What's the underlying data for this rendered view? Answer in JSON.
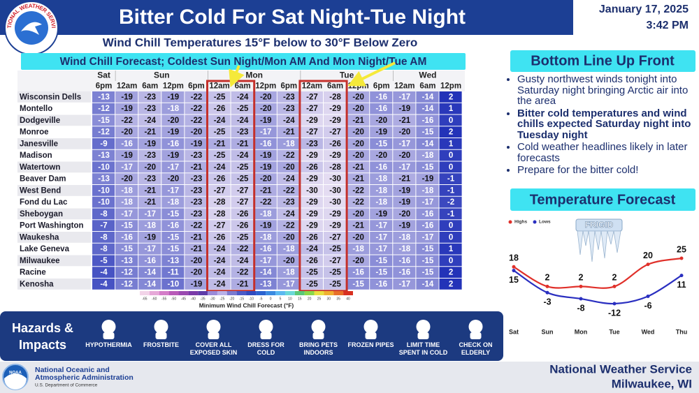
{
  "header": {
    "logo_text": "NATIONAL WEATHER SERVICE",
    "title": "Bitter Cold For Sat Night-Tue Night",
    "date": "January 17, 2025",
    "time": "3:42 PM",
    "subtitle": "Wind Chill Temperatures 15°F below to 30°F Below Zero"
  },
  "table": {
    "banner": "Wind Chill Forecast; Coldest Sun Night/Mon AM And Mon Night/Tue AM",
    "days": [
      {
        "name": "Sat",
        "times": [
          "6pm"
        ]
      },
      {
        "name": "Sun",
        "times": [
          "12am",
          "6am",
          "12pm",
          "6pm"
        ]
      },
      {
        "name": "Mon",
        "times": [
          "12am",
          "6am",
          "12pm",
          "6pm"
        ]
      },
      {
        "name": "Tue",
        "times": [
          "12am",
          "6am",
          "12pm",
          "6pm"
        ]
      },
      {
        "name": "Wed",
        "times": [
          "12am",
          "6am",
          "12pm"
        ]
      }
    ],
    "rows": [
      {
        "name": "Wisconsin Dells",
        "values": [
          -13,
          -19,
          -23,
          -19,
          -22,
          -25,
          -24,
          -20,
          -23,
          -27,
          -28,
          -20,
          -16,
          -17,
          -14,
          2
        ]
      },
      {
        "name": "Montello",
        "values": [
          -12,
          -19,
          -23,
          -18,
          -22,
          -26,
          -25,
          -20,
          -23,
          -27,
          -29,
          -20,
          -16,
          -19,
          -14,
          1
        ]
      },
      {
        "name": "Dodgeville",
        "values": [
          -15,
          -22,
          -24,
          -20,
          -22,
          -24,
          -24,
          -19,
          -24,
          -29,
          -29,
          -21,
          -20,
          -21,
          -16,
          0
        ]
      },
      {
        "name": "Monroe",
        "values": [
          -12,
          -20,
          -21,
          -19,
          -20,
          -25,
          -23,
          -17,
          -21,
          -27,
          -27,
          -20,
          -19,
          -20,
          -15,
          2
        ]
      },
      {
        "name": "Janesville",
        "values": [
          -9,
          -16,
          -19,
          -16,
          -19,
          -21,
          -21,
          -16,
          -18,
          -23,
          -26,
          -20,
          -15,
          -17,
          -14,
          1
        ]
      },
      {
        "name": "Madison",
        "values": [
          -13,
          -19,
          -23,
          -19,
          -23,
          -25,
          -24,
          -19,
          -22,
          -29,
          -29,
          -20,
          -20,
          -20,
          -18,
          0
        ]
      },
      {
        "name": "Watertown",
        "values": [
          -10,
          -17,
          -20,
          -17,
          -21,
          -24,
          -25,
          -19,
          -20,
          -26,
          -28,
          -21,
          -16,
          -17,
          -15,
          0
        ]
      },
      {
        "name": "Beaver Dam",
        "values": [
          -13,
          -20,
          -23,
          -20,
          -23,
          -26,
          -25,
          -20,
          -24,
          -29,
          -30,
          -21,
          -18,
          -21,
          -19,
          -1
        ]
      },
      {
        "name": "West Bend",
        "values": [
          -10,
          -18,
          -21,
          -17,
          -23,
          -27,
          -27,
          -21,
          -22,
          -30,
          -30,
          -22,
          -18,
          -19,
          -18,
          -1
        ]
      },
      {
        "name": "Fond du Lac",
        "values": [
          -10,
          -18,
          -21,
          -18,
          -23,
          -28,
          -27,
          -22,
          -23,
          -29,
          -30,
          -22,
          -18,
          -19,
          -17,
          -2
        ]
      },
      {
        "name": "Sheboygan",
        "values": [
          -8,
          -17,
          -17,
          -15,
          -23,
          -28,
          -26,
          -18,
          -24,
          -29,
          -29,
          -20,
          -19,
          -20,
          -16,
          -1
        ]
      },
      {
        "name": "Port Washington",
        "values": [
          -7,
          -15,
          -18,
          -16,
          -22,
          -27,
          -26,
          -19,
          -22,
          -29,
          -29,
          -21,
          -17,
          -19,
          -16,
          0
        ]
      },
      {
        "name": "Waukesha",
        "values": [
          -8,
          -16,
          -19,
          -15,
          -21,
          -26,
          -25,
          -18,
          -20,
          -26,
          -27,
          -20,
          -17,
          -18,
          -17,
          0
        ]
      },
      {
        "name": "Lake Geneva",
        "values": [
          -8,
          -15,
          -17,
          -15,
          -21,
          -24,
          -22,
          -16,
          -18,
          -24,
          -25,
          -18,
          -17,
          -18,
          -15,
          1
        ]
      },
      {
        "name": "Milwaukee",
        "values": [
          -5,
          -13,
          -16,
          -13,
          -20,
          -24,
          -24,
          -17,
          -20,
          -26,
          -27,
          -20,
          -15,
          -16,
          -15,
          0
        ]
      },
      {
        "name": "Racine",
        "values": [
          -4,
          -12,
          -14,
          -11,
          -20,
          -24,
          -22,
          -14,
          -18,
          -25,
          -25,
          -16,
          -15,
          -16,
          -15,
          2
        ]
      },
      {
        "name": "Kenosha",
        "values": [
          -4,
          -12,
          -14,
          -10,
          -19,
          -24,
          -21,
          -13,
          -17,
          -25,
          -25,
          -15,
          -16,
          -17,
          -14,
          2
        ]
      }
    ]
  },
  "colorbar": {
    "ticks": [
      -65,
      -60,
      -55,
      -50,
      -45,
      -40,
      -35,
      -30,
      -25,
      -20,
      -15,
      -10,
      -5,
      0,
      5,
      10,
      15,
      20,
      25,
      30,
      35,
      40
    ],
    "title": "Minimum Wind Chill Forecast (°F)"
  },
  "bluf": {
    "title": "Bottom Line Up Front",
    "bullets": [
      {
        "text": "Gusty northwest winds tonight into Saturday night bringing Arctic air into the area",
        "bold": false
      },
      {
        "text": "Bitter cold temperatures and wind chills expected Saturday night into Tuesday night",
        "bold": true
      },
      {
        "text": "Cold weather headlines likely in later forecasts",
        "bold": false
      },
      {
        "text": "Prepare for the bitter cold!",
        "bold": false
      }
    ]
  },
  "chart_data": {
    "type": "line",
    "title": "Temperature Forecast",
    "icon_text": "FRIGID",
    "categories": [
      "Sat",
      "Sun",
      "Mon",
      "Tue",
      "Wed",
      "Thu"
    ],
    "series": [
      {
        "name": "Highs",
        "color": "#e0302a",
        "values": [
          18,
          2,
          2,
          2,
          20,
          25
        ]
      },
      {
        "name": "Lows",
        "color": "#2a2fc0",
        "values": [
          15,
          -3,
          -8,
          -12,
          -6,
          11
        ]
      }
    ]
  },
  "hazards": {
    "title": "Hazards & Impacts",
    "items": [
      "HYPOTHERMIA",
      "FROSTBITE",
      "COVER ALL EXPOSED SKIN",
      "DRESS FOR COLD",
      "BRING PETS INDOORS",
      "FROZEN PIPES",
      "LIMIT TIME SPENT IN COLD",
      "CHECK ON ELDERLY"
    ]
  },
  "footer": {
    "noaa_logo": "NOAA",
    "agency": [
      "National Oceanic and",
      "Atmospheric Administration"
    ],
    "department": "U.S. Department of Commerce",
    "office": "National Weather Service",
    "location": "Milwaukee, WI"
  }
}
